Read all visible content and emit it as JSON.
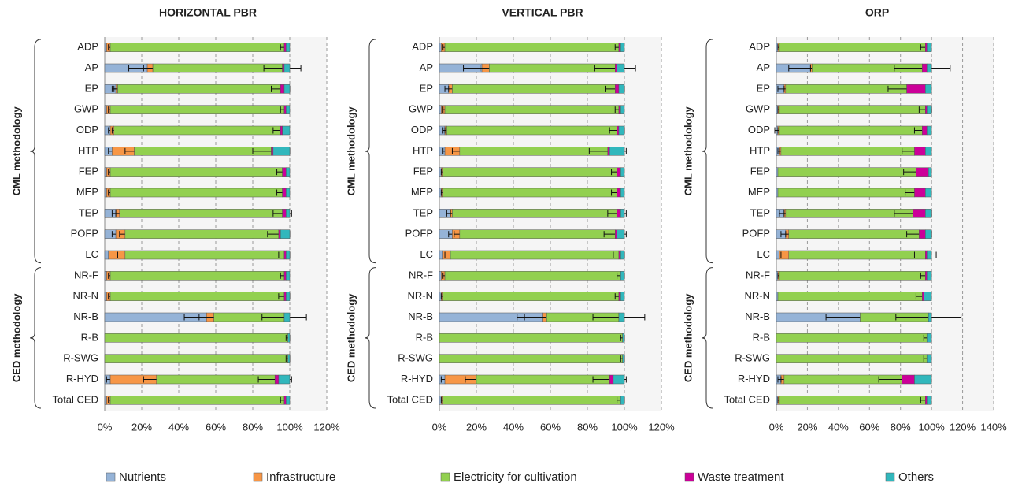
{
  "chart_data": [
    {
      "type": "stacked-barh",
      "title": "HORIZONTAL PBR",
      "groups": [
        "CML methodology",
        "CED methodology"
      ],
      "categories": [
        "ADP",
        "AP",
        "EP",
        "GWP",
        "ODP",
        "HTP",
        "FEP",
        "MEP",
        "TEP",
        "POFP",
        "LC",
        "NR-F",
        "NR-N",
        "NR-B",
        "R-B",
        "R-SWG",
        "R-HYD",
        "Total CED"
      ],
      "series": [
        {
          "name": "Nutrients",
          "color": "#95b3d7",
          "values": [
            1,
            23,
            6,
            1,
            3,
            4,
            1,
            1,
            6,
            6,
            2,
            1,
            1,
            55,
            0,
            0,
            3,
            1
          ],
          "errors": [
            null,
            10,
            2,
            null,
            1,
            2,
            null,
            null,
            2,
            2,
            null,
            null,
            null,
            12,
            null,
            null,
            2,
            null
          ]
        },
        {
          "name": "Infrastructure",
          "color": "#f79646",
          "values": [
            2,
            3,
            1,
            2,
            2,
            12,
            2,
            2,
            2,
            5,
            9,
            2,
            2,
            4,
            0,
            0,
            25,
            2
          ],
          "errors": [
            1,
            5,
            2,
            1,
            1,
            5,
            1,
            1,
            2,
            3,
            4,
            1,
            1,
            8,
            null,
            null,
            7,
            1
          ]
        },
        {
          "name": "Electricity for cultivation",
          "color": "#92d050",
          "values": [
            94,
            70,
            88,
            94,
            90,
            74,
            93,
            93,
            88,
            83,
            86,
            94,
            94,
            38,
            99,
            99,
            64,
            94
          ],
          "errors": [
            2,
            10,
            5,
            2,
            4,
            10,
            3,
            3,
            5,
            6,
            3,
            2,
            3,
            12,
            1,
            1,
            9,
            2
          ]
        },
        {
          "name": "Waste treatment",
          "color": "#cc0099",
          "values": [
            1,
            1,
            2,
            1,
            1,
            1,
            2,
            2,
            2,
            1,
            1,
            1,
            1,
            0,
            0,
            0,
            2,
            1
          ]
        },
        {
          "name": "Others",
          "color": "#31b7bc",
          "values": [
            2,
            3,
            3,
            2,
            4,
            9,
            2,
            2,
            2,
            5,
            2,
            2,
            2,
            3,
            1,
            1,
            6,
            2
          ]
        }
      ],
      "xlim": [
        0,
        120
      ],
      "xticks": [
        {
          "value": 0,
          "label": "0%"
        },
        {
          "value": 20,
          "label": "20%"
        },
        {
          "value": 40,
          "label": "40%"
        },
        {
          "value": 60,
          "label": "60%"
        },
        {
          "value": 80,
          "label": "80%"
        },
        {
          "value": 100,
          "label": "100%"
        },
        {
          "value": 120,
          "label": "120%"
        }
      ],
      "grid": true
    },
    {
      "type": "stacked-barh",
      "title": "VERTICAL PBR",
      "groups": [
        "CML methodology",
        "CED methodology"
      ],
      "categories": [
        "ADP",
        "AP",
        "EP",
        "GWP",
        "ODP",
        "HTP",
        "FEP",
        "MEP",
        "TEP",
        "POFP",
        "LC",
        "NR-F",
        "NR-N",
        "NR-B",
        "R-B",
        "R-SWG",
        "R-HYD",
        "Total CED"
      ],
      "series": [
        {
          "name": "Nutrients",
          "color": "#95b3d7",
          "values": [
            1,
            23,
            5,
            1,
            3,
            3,
            1,
            1,
            6,
            7,
            2,
            1,
            1,
            56,
            0,
            0,
            3,
            1
          ],
          "errors": [
            null,
            10,
            2,
            null,
            1,
            1,
            null,
            null,
            2,
            2,
            null,
            null,
            null,
            14,
            null,
            null,
            2,
            null
          ]
        },
        {
          "name": "Infrastructure",
          "color": "#f79646",
          "values": [
            2,
            4,
            2,
            2,
            1,
            8,
            1,
            1,
            1,
            4,
            4,
            2,
            1,
            2,
            0,
            0,
            17,
            1
          ],
          "errors": [
            1,
            5,
            2,
            1,
            1,
            4,
            1,
            1,
            1,
            3,
            3,
            1,
            1,
            12,
            null,
            null,
            6,
            1
          ]
        },
        {
          "name": "Electricity for cultivation",
          "color": "#92d050",
          "values": [
            94,
            68,
            88,
            94,
            92,
            80,
            94,
            94,
            89,
            84,
            91,
            95,
            95,
            39,
            99,
            99,
            72,
            96
          ],
          "errors": [
            2,
            11,
            5,
            2,
            4,
            10,
            3,
            3,
            5,
            6,
            3,
            2,
            2,
            14,
            1,
            1,
            9,
            2
          ]
        },
        {
          "name": "Waste treatment",
          "color": "#cc0099",
          "values": [
            1,
            1,
            2,
            1,
            1,
            1,
            2,
            2,
            2,
            1,
            1,
            0,
            1,
            0,
            0,
            0,
            2,
            0
          ]
        },
        {
          "name": "Others",
          "color": "#31b7bc",
          "values": [
            2,
            4,
            3,
            2,
            3,
            8,
            2,
            2,
            2,
            4,
            2,
            2,
            2,
            3,
            1,
            1,
            6,
            2
          ]
        }
      ],
      "xlim": [
        0,
        120
      ],
      "xticks": [
        {
          "value": 0,
          "label": "0%"
        },
        {
          "value": 20,
          "label": "20%"
        },
        {
          "value": 40,
          "label": "40%"
        },
        {
          "value": 60,
          "label": "60%"
        },
        {
          "value": 80,
          "label": "80%"
        },
        {
          "value": 100,
          "label": "100%"
        },
        {
          "value": 120,
          "label": "120%"
        }
      ],
      "grid": true
    },
    {
      "type": "stacked-barh",
      "title": "ORP",
      "groups": [
        "CML methodology",
        "CED methodology"
      ],
      "categories": [
        "ADP",
        "AP",
        "EP",
        "GWP",
        "ODP",
        "HTP",
        "FEP",
        "MEP",
        "TEP",
        "POFP",
        "LC",
        "NR-F",
        "NR-N",
        "NR-B",
        "R-B",
        "R-SWG",
        "R-HYD",
        "Total CED"
      ],
      "series": [
        {
          "name": "Nutrients",
          "color": "#95b3d7",
          "values": [
            1,
            22,
            5,
            1,
            1,
            2,
            1,
            1,
            5,
            6,
            2,
            1,
            1,
            54,
            0,
            0,
            3,
            1
          ],
          "errors": [
            null,
            14,
            4,
            null,
            2,
            1,
            null,
            null,
            3,
            3,
            null,
            null,
            null,
            22,
            null,
            null,
            2,
            null
          ]
        },
        {
          "name": "Infrastructure",
          "color": "#f79646",
          "values": [
            1,
            1,
            1,
            1,
            1,
            1,
            0,
            0,
            1,
            2,
            6,
            1,
            0,
            0,
            0,
            0,
            2,
            1
          ],
          "errors": [
            1,
            1,
            1,
            1,
            1,
            1,
            null,
            null,
            1,
            2,
            5,
            1,
            null,
            null,
            null,
            null,
            2,
            1
          ]
        },
        {
          "name": "Electricity for cultivation",
          "color": "#92d050",
          "values": [
            94,
            71,
            78,
            94,
            92,
            86,
            89,
            88,
            82,
            84,
            88,
            94,
            93,
            44,
            97,
            97,
            76,
            94
          ],
          "errors": [
            3,
            18,
            12,
            4,
            5,
            8,
            8,
            6,
            12,
            8,
            7,
            3,
            4,
            21,
            2,
            2,
            15,
            3
          ]
        },
        {
          "name": "Waste treatment",
          "color": "#cc0099",
          "values": [
            1,
            3,
            12,
            1,
            3,
            7,
            8,
            7,
            8,
            4,
            1,
            1,
            1,
            0,
            0,
            0,
            8,
            1
          ]
        },
        {
          "name": "Others",
          "color": "#31b7bc",
          "values": [
            3,
            3,
            4,
            3,
            3,
            4,
            2,
            4,
            4,
            4,
            3,
            3,
            5,
            2,
            3,
            3,
            11,
            3
          ]
        }
      ],
      "xlim": [
        0,
        140
      ],
      "xticks": [
        {
          "value": 0,
          "label": "0%"
        },
        {
          "value": 20,
          "label": "20%"
        },
        {
          "value": 40,
          "label": "40%"
        },
        {
          "value": 60,
          "label": "60%"
        },
        {
          "value": 80,
          "label": "80%"
        },
        {
          "value": 100,
          "label": "100%"
        },
        {
          "value": 120,
          "label": "120%"
        },
        {
          "value": 140,
          "label": "140%"
        }
      ],
      "grid": true
    }
  ]
}
